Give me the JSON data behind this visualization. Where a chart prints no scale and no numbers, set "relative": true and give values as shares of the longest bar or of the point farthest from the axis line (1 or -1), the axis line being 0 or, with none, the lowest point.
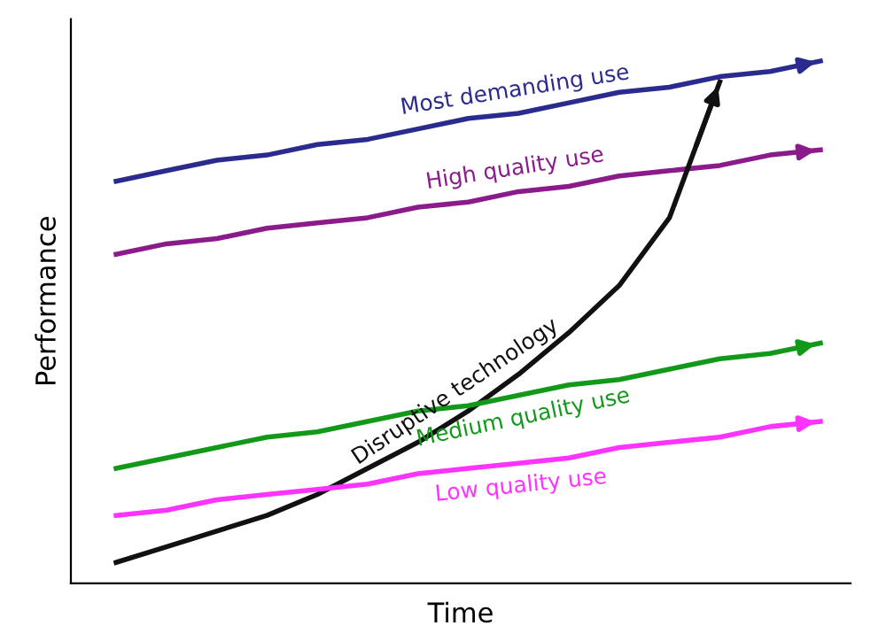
{
  "chart_data": {
    "type": "line",
    "relative": true,
    "xlabel": "Time",
    "ylabel": "Performance",
    "legend": false,
    "grid": false,
    "marker": "none",
    "line_style": "solid",
    "categories": [
      null,
      null,
      null,
      null,
      null,
      null,
      null,
      null,
      null,
      null,
      null,
      null,
      null,
      null,
      null
    ],
    "series": [
      {
        "name": "Most demanding use",
        "color": "#2b2a8e",
        "values": [
          0.77,
          0.79,
          0.81,
          0.82,
          0.84,
          0.85,
          0.87,
          0.89,
          0.9,
          0.92,
          0.94,
          0.95,
          0.97,
          0.98,
          1.0
        ]
      },
      {
        "name": "High quality use",
        "color": "#8b1a8b",
        "values": [
          0.63,
          0.65,
          0.66,
          0.68,
          0.69,
          0.7,
          0.72,
          0.73,
          0.75,
          0.76,
          0.78,
          0.79,
          0.8,
          0.82,
          0.83
        ]
      },
      {
        "name": "Disruptive technology",
        "color": "#111111",
        "values": [
          0.04,
          0.07,
          0.1,
          0.13,
          0.17,
          0.22,
          0.27,
          0.33,
          0.4,
          0.48,
          0.57,
          0.7,
          0.96,
          null,
          null
        ]
      },
      {
        "name": "Medium quality use",
        "color": "#12991a",
        "values": [
          0.22,
          0.24,
          0.26,
          0.28,
          0.29,
          0.31,
          0.33,
          0.34,
          0.36,
          0.38,
          0.39,
          0.41,
          0.43,
          0.44,
          0.46
        ]
      },
      {
        "name": "Low quality use",
        "color": "#ff33ff",
        "values": [
          0.13,
          0.14,
          0.16,
          0.17,
          0.18,
          0.19,
          0.21,
          0.22,
          0.23,
          0.24,
          0.26,
          0.27,
          0.28,
          0.3,
          0.31
        ]
      }
    ]
  }
}
